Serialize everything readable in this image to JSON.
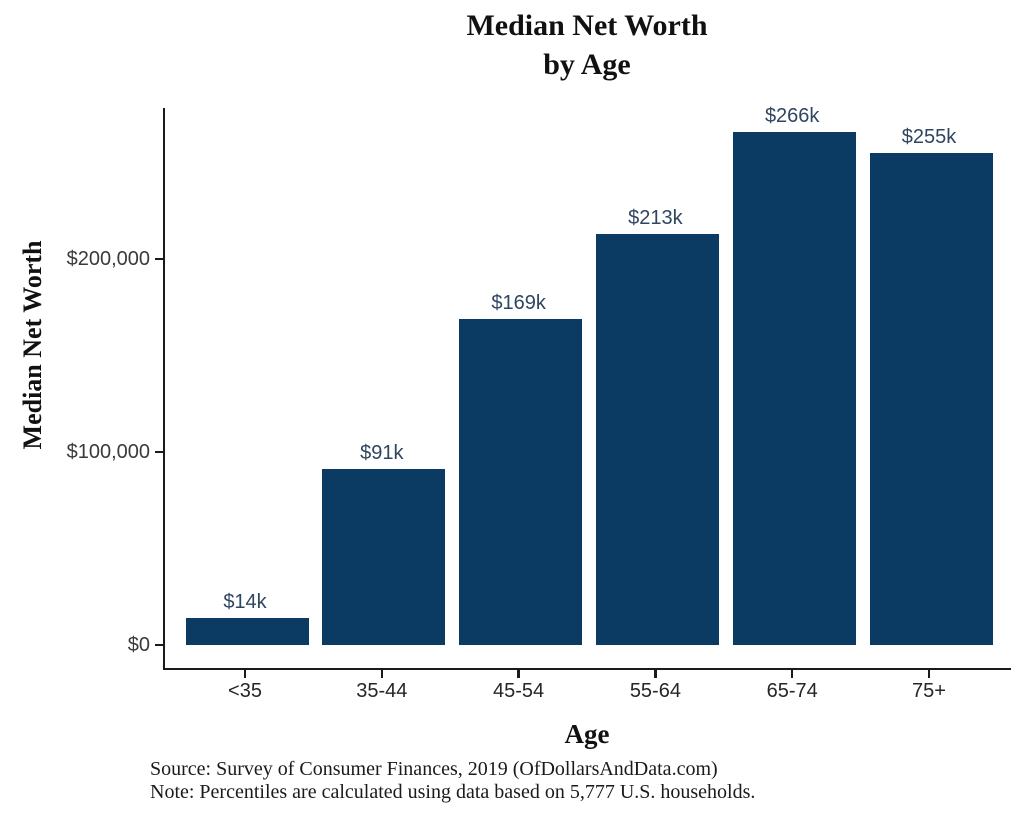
{
  "figure": {
    "title_line1": "Median Net Worth",
    "title_line2": "by Age",
    "y_axis_title": "Median Net Worth",
    "x_axis_title": "Age",
    "caption_line1": "Source:  Survey of Consumer Finances, 2019 (OfDollarsAndData.com)",
    "caption_line2": "Note: Percentiles are calculated using data based on 5,777 U.S. households."
  },
  "chart_data": {
    "type": "bar",
    "title": "Median Net Worth by Age",
    "categories": [
      "<35",
      "35-44",
      "45-54",
      "55-64",
      "65-74",
      "75+"
    ],
    "values": [
      14000,
      91000,
      169000,
      213000,
      266000,
      255000
    ],
    "bar_labels": [
      "$14k",
      "$91k",
      "$169k",
      "$213k",
      "$266k",
      "$255k"
    ],
    "xlabel": "Age",
    "ylabel": "Median Net Worth",
    "y_ticks": [
      {
        "value": 0,
        "label": "$0"
      },
      {
        "value": 100000,
        "label": "$100,000"
      },
      {
        "value": 200000,
        "label": "$200,000"
      }
    ],
    "ylim": [
      -13300,
      279300
    ],
    "grid": false,
    "legend": "none",
    "colors": {
      "bar": "#0B3B63",
      "bar_label": "#2F4560",
      "axis_line": "#1A1A1A",
      "tick_label": "#3A3A3A",
      "background": "#FFFFFF"
    }
  }
}
